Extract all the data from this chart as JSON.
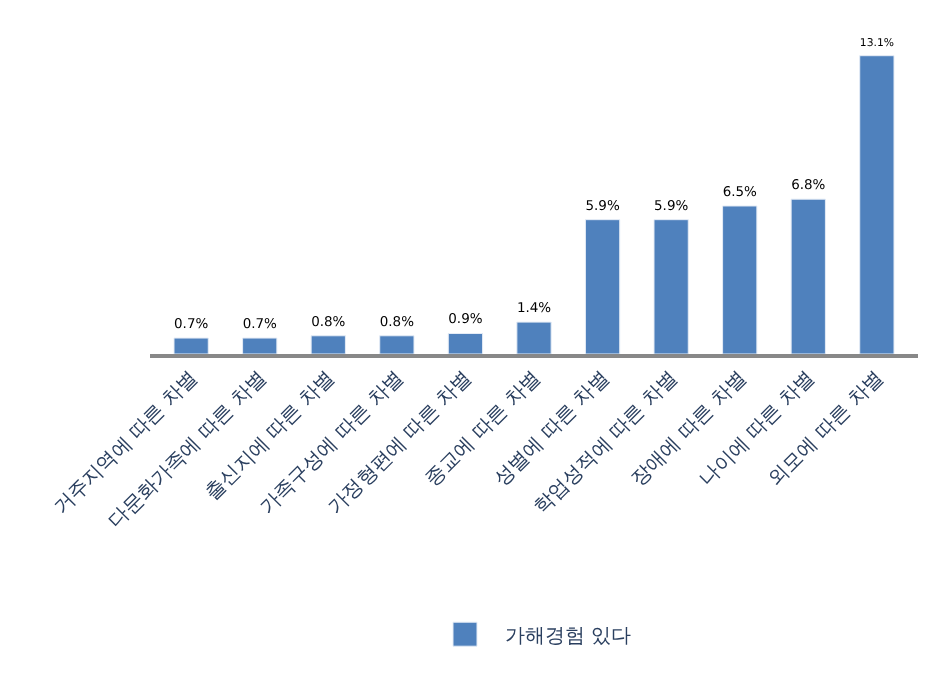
{
  "chart_data": {
    "type": "bar",
    "categories": [
      "거주지역에 따른 차별",
      "다문화가족에 따른 차별",
      "출신지에 따른 차별",
      "가족구성에 따른 차별",
      "가정형편에 따른 차별",
      "종교에 따른 차별",
      "성별에 따른 차별",
      "학업성적에 따른 차별",
      "장애에 따른 차별",
      "나이에 따른 차별",
      "외모에 따른 차별"
    ],
    "series": [
      {
        "name": "가해경험 있다",
        "color": "#4f81bd",
        "values": [
          0.7,
          0.7,
          0.8,
          0.8,
          0.9,
          1.4,
          5.9,
          5.9,
          6.5,
          6.8,
          13.1
        ],
        "value_labels": [
          "0.7%",
          "0.7%",
          "0.8%",
          "0.8%",
          "0.9%",
          "1.4%",
          "5.9%",
          "5.9%",
          "6.5%",
          "6.8%",
          "13.1%"
        ]
      }
    ],
    "legend": "bottom"
  }
}
